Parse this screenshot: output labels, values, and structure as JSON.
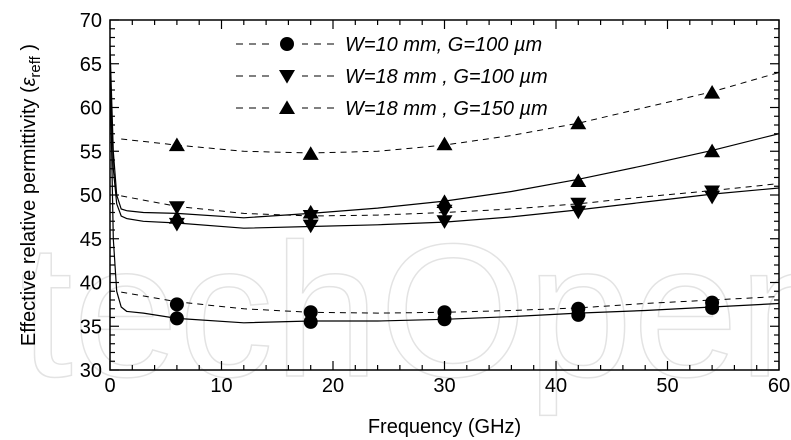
{
  "watermark": "techOpen",
  "chart_data": {
    "type": "scatter",
    "xlabel": "Frequency (GHz)",
    "ylabel_main": "Effective relative permittivity (",
    "ylabel_symbol": "ε",
    "ylabel_sub": "reff",
    "ylabel_close": " )",
    "xlim": [
      0,
      60
    ],
    "ylim": [
      30,
      70
    ],
    "xticks": [
      "0",
      "10",
      "20",
      "30",
      "40",
      "50",
      "60"
    ],
    "yticks": [
      "30",
      "35",
      "40",
      "45",
      "50",
      "55",
      "60",
      "65",
      "70"
    ],
    "grid": false,
    "legend_position": "top-center",
    "series": [
      {
        "name": "W=10 mm, G=100 µm",
        "marker": "circle",
        "points": [
          [
            6,
            37.5
          ],
          [
            6,
            35.9
          ],
          [
            18,
            36.6
          ],
          [
            18,
            35.5
          ],
          [
            30,
            36.6
          ],
          [
            30,
            35.8
          ],
          [
            42,
            37.0
          ],
          [
            42,
            36.3
          ],
          [
            54,
            37.7
          ],
          [
            54,
            37.1
          ]
        ],
        "fit_dashed": [
          [
            1,
            38.9
          ],
          [
            6,
            37.8
          ],
          [
            12,
            37.0
          ],
          [
            18,
            36.6
          ],
          [
            24,
            36.5
          ],
          [
            30,
            36.6
          ],
          [
            36,
            36.8
          ],
          [
            42,
            37.1
          ],
          [
            48,
            37.6
          ],
          [
            54,
            38.0
          ],
          [
            60,
            38.4
          ]
        ],
        "measured_solid": [
          [
            0,
            65
          ],
          [
            0.3,
            45
          ],
          [
            0.6,
            39
          ],
          [
            1,
            37.2
          ],
          [
            1.5,
            36.7
          ],
          [
            3,
            36.5
          ],
          [
            6,
            35.9
          ],
          [
            12,
            35.4
          ],
          [
            18,
            35.6
          ],
          [
            24,
            35.6
          ],
          [
            30,
            35.8
          ],
          [
            36,
            36.1
          ],
          [
            42,
            36.5
          ],
          [
            48,
            36.8
          ],
          [
            54,
            37.2
          ],
          [
            60,
            37.6
          ]
        ]
      },
      {
        "name": "W=18 mm , G=100 µm",
        "marker": "triangle-down",
        "points": [
          [
            6,
            48.6
          ],
          [
            6,
            46.7
          ],
          [
            18,
            47.6
          ],
          [
            18,
            46.5
          ],
          [
            30,
            48.2
          ],
          [
            30,
            47.0
          ],
          [
            42,
            49.0
          ],
          [
            42,
            48.1
          ],
          [
            54,
            50.4
          ],
          [
            54,
            49.8
          ]
        ],
        "fit_dashed": [
          [
            1,
            49.9
          ],
          [
            6,
            48.7
          ],
          [
            12,
            47.9
          ],
          [
            18,
            47.6
          ],
          [
            24,
            47.7
          ],
          [
            30,
            48.0
          ],
          [
            36,
            48.4
          ],
          [
            42,
            49.0
          ],
          [
            48,
            49.8
          ],
          [
            54,
            50.5
          ],
          [
            60,
            51.3
          ]
        ],
        "measured_solid": [
          [
            0,
            66
          ],
          [
            0.3,
            53
          ],
          [
            0.6,
            49
          ],
          [
            1,
            47.6
          ],
          [
            1.5,
            47.3
          ],
          [
            3,
            47.0
          ],
          [
            6,
            46.8
          ],
          [
            12,
            46.2
          ],
          [
            18,
            46.4
          ],
          [
            24,
            46.6
          ],
          [
            30,
            46.9
          ],
          [
            36,
            47.5
          ],
          [
            42,
            48.3
          ],
          [
            48,
            49.2
          ],
          [
            54,
            50.1
          ],
          [
            60,
            50.8
          ]
        ]
      },
      {
        "name": "W=18 mm, G=150 µm",
        "label_text": "W=18 mm , G=150 µm",
        "marker": "triangle-up",
        "points": [
          [
            6,
            55.7
          ],
          [
            6,
            47.4
          ],
          [
            18,
            54.7
          ],
          [
            18,
            48.0
          ],
          [
            30,
            55.8
          ],
          [
            30,
            49.2
          ],
          [
            42,
            58.2
          ],
          [
            42,
            51.6
          ],
          [
            54,
            61.7
          ],
          [
            54,
            55.0
          ]
        ],
        "fit_dashed": [
          [
            1,
            56.4
          ],
          [
            6,
            55.7
          ],
          [
            12,
            55.0
          ],
          [
            18,
            54.8
          ],
          [
            24,
            55.0
          ],
          [
            30,
            55.7
          ],
          [
            36,
            56.8
          ],
          [
            42,
            58.2
          ],
          [
            48,
            60.0
          ],
          [
            54,
            61.8
          ],
          [
            60,
            64.0
          ]
        ],
        "measured_solid": [
          [
            0,
            67
          ],
          [
            0.3,
            55
          ],
          [
            0.6,
            50
          ],
          [
            1,
            48.4
          ],
          [
            1.5,
            48.2
          ],
          [
            3,
            48.0
          ],
          [
            6,
            47.9
          ],
          [
            12,
            47.4
          ],
          [
            18,
            47.9
          ],
          [
            24,
            48.5
          ],
          [
            30,
            49.3
          ],
          [
            36,
            50.4
          ],
          [
            42,
            51.8
          ],
          [
            48,
            53.4
          ],
          [
            54,
            55.1
          ],
          [
            60,
            57.0
          ]
        ]
      }
    ]
  }
}
